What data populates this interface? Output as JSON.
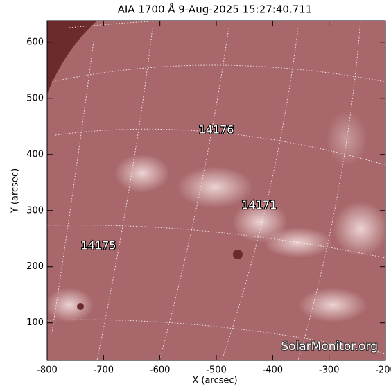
{
  "chart_data": {
    "type": "image",
    "title": "AIA 1700 Å  9-Aug-2025 15:27:40.711",
    "x_label": "X (arcsec)",
    "y_label": "Y (arcsec)",
    "xlim": [
      -800,
      -200
    ],
    "ylim": [
      33,
      638
    ],
    "xticks": [
      -800,
      -700,
      -600,
      -500,
      -400,
      -300,
      -200
    ],
    "yticks": [
      100,
      200,
      300,
      400,
      500,
      600
    ],
    "annotations": [
      {
        "text": "14176",
        "x": -500,
        "y": 443
      },
      {
        "text": "14171",
        "x": -424,
        "y": 309
      },
      {
        "text": "14175",
        "x": -709,
        "y": 237
      }
    ],
    "watermark": "SolarMonitor.org"
  }
}
